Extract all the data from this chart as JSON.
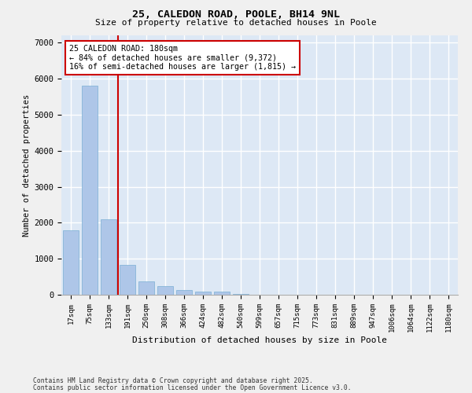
{
  "title1": "25, CALEDON ROAD, POOLE, BH14 9NL",
  "title2": "Size of property relative to detached houses in Poole",
  "xlabel": "Distribution of detached houses by size in Poole",
  "ylabel": "Number of detached properties",
  "categories": [
    "17sqm",
    "75sqm",
    "133sqm",
    "191sqm",
    "250sqm",
    "308sqm",
    "366sqm",
    "424sqm",
    "482sqm",
    "540sqm",
    "599sqm",
    "657sqm",
    "715sqm",
    "773sqm",
    "831sqm",
    "889sqm",
    "947sqm",
    "1006sqm",
    "1064sqm",
    "1122sqm",
    "1180sqm"
  ],
  "values": [
    1780,
    5800,
    2100,
    820,
    380,
    240,
    140,
    90,
    90,
    30,
    10,
    0,
    0,
    0,
    0,
    0,
    0,
    0,
    0,
    0,
    0
  ],
  "bar_color": "#aec6e8",
  "bar_edge_color": "#7aafd4",
  "vline_color": "#cc0000",
  "annotation_text": "25 CALEDON ROAD: 180sqm\n← 84% of detached houses are smaller (9,372)\n16% of semi-detached houses are larger (1,815) →",
  "annotation_box_color": "#ffffff",
  "annotation_box_edge": "#cc0000",
  "ylim": [
    0,
    7200
  ],
  "yticks": [
    0,
    1000,
    2000,
    3000,
    4000,
    5000,
    6000,
    7000
  ],
  "background_color": "#dde8f5",
  "grid_color": "#ffffff",
  "fig_background": "#f0f0f0",
  "footer1": "Contains HM Land Registry data © Crown copyright and database right 2025.",
  "footer2": "Contains public sector information licensed under the Open Government Licence v3.0."
}
